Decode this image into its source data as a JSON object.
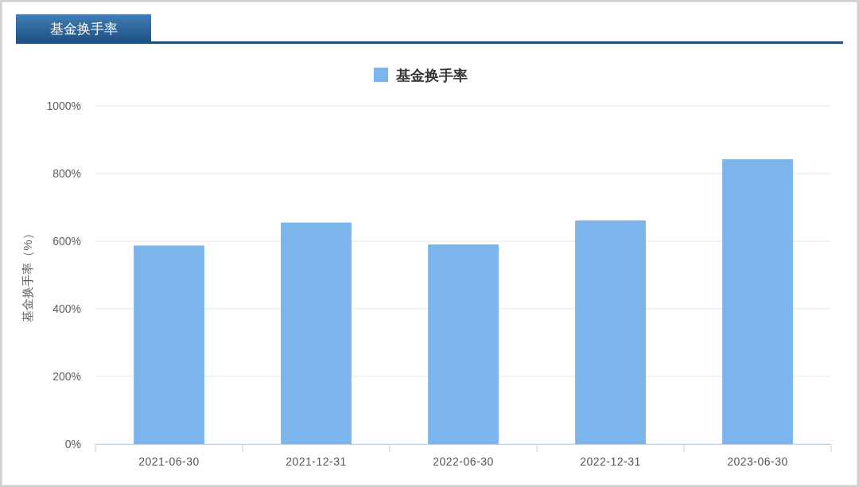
{
  "chart_data": {
    "type": "bar",
    "title": "基金换手率",
    "ylabel": "基金换手率（%）",
    "categories": [
      "2021-06-30",
      "2021-12-31",
      "2022-06-30",
      "2022-12-31",
      "2023-06-30"
    ],
    "series": [
      {
        "name": "基金换手率",
        "color": "#7cb5ec",
        "values": [
          587,
          655,
          590,
          661,
          842
        ]
      }
    ],
    "ylim": [
      0,
      1000
    ],
    "yticks": [
      {
        "value": 0,
        "label": "0%"
      },
      {
        "value": 200,
        "label": "200%"
      },
      {
        "value": 400,
        "label": "400%"
      },
      {
        "value": 600,
        "label": "600%"
      },
      {
        "value": 800,
        "label": "800%"
      },
      {
        "value": 1000,
        "label": "1000%"
      }
    ],
    "grid": "y",
    "legend": "top"
  }
}
